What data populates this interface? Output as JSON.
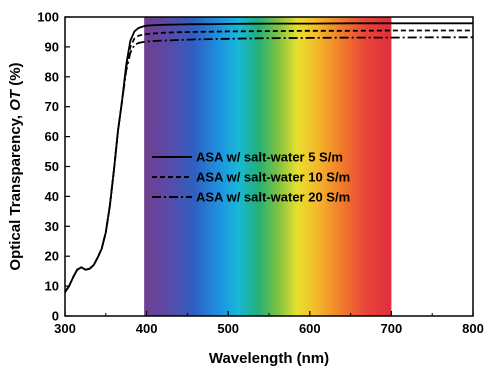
{
  "chart_data": {
    "type": "line",
    "xlabel": "Wavelength (nm)",
    "ylabel_main": "Optical Transparency, ",
    "ylabel_italic": "OT",
    "ylabel_unit": " (%)",
    "xlim": [
      300,
      800
    ],
    "ylim": [
      0,
      100
    ],
    "x_ticks": [
      300,
      400,
      500,
      600,
      700,
      800
    ],
    "y_ticks": [
      0,
      10,
      20,
      30,
      40,
      50,
      60,
      70,
      80,
      90,
      100
    ],
    "grid": false,
    "legend_position": "center",
    "spectrum_band": [
      397,
      700
    ],
    "series": [
      {
        "name": "ASA w/ salt-water 5 S/m",
        "line_style": "solid",
        "x": [
          300,
          305,
          310,
          315,
          320,
          325,
          330,
          335,
          340,
          345,
          350,
          355,
          360,
          365,
          370,
          375,
          380,
          385,
          390,
          395,
          400,
          410,
          420,
          440,
          460,
          480,
          500,
          550,
          600,
          650,
          700,
          750,
          800
        ],
        "y": [
          8,
          10,
          13,
          15.5,
          16.3,
          15.5,
          15.8,
          17,
          19.5,
          22.5,
          28,
          37,
          49,
          62,
          72,
          84,
          92,
          95.2,
          96.3,
          96.8,
          97.1,
          97.3,
          97.4,
          97.5,
          97.6,
          97.6,
          97.7,
          97.8,
          97.8,
          97.9,
          97.9,
          97.9,
          97.9
        ]
      },
      {
        "name": "ASA w/ salt-water 10 S/m",
        "line_style": "dashed",
        "x": [
          300,
          305,
          310,
          315,
          320,
          325,
          330,
          335,
          340,
          345,
          350,
          355,
          360,
          365,
          370,
          375,
          380,
          385,
          390,
          395,
          400,
          410,
          420,
          440,
          460,
          480,
          500,
          550,
          600,
          650,
          700,
          750,
          800
        ],
        "y": [
          8,
          10,
          13,
          15.5,
          16.3,
          15.5,
          15.8,
          17,
          19.5,
          22.5,
          28,
          37,
          49,
          62,
          72,
          83,
          90,
          92.8,
          93.7,
          94.1,
          94.3,
          94.5,
          94.7,
          94.9,
          95.0,
          95.1,
          95.2,
          95.3,
          95.4,
          95.4,
          95.5,
          95.5,
          95.5
        ]
      },
      {
        "name": "ASA w/ salt-water 20 S/m",
        "line_style": "dashdot",
        "x": [
          300,
          305,
          310,
          315,
          320,
          325,
          330,
          335,
          340,
          345,
          350,
          355,
          360,
          365,
          370,
          375,
          380,
          385,
          390,
          395,
          400,
          410,
          420,
          440,
          460,
          480,
          500,
          550,
          600,
          650,
          700,
          750,
          800
        ],
        "y": [
          8,
          10,
          13,
          15.5,
          16.3,
          15.5,
          15.8,
          17,
          19.5,
          22.5,
          28,
          37,
          49,
          62,
          72,
          82,
          88,
          90.6,
          91.3,
          91.6,
          91.8,
          92.0,
          92.1,
          92.3,
          92.5,
          92.6,
          92.7,
          92.9,
          93.0,
          93.1,
          93.1,
          93.2,
          93.2
        ]
      }
    ]
  }
}
